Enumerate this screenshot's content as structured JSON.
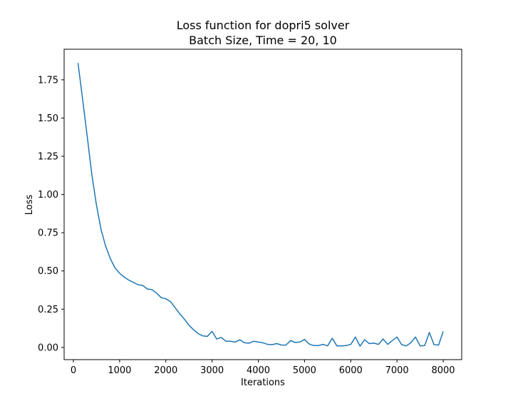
{
  "chart_data": {
    "type": "line",
    "title_line1": "Loss function for dopri5 solver",
    "title_line2": "Batch Size, Time = 20, 10",
    "xlabel": "Iterations",
    "ylabel": "Loss",
    "xlim": [
      -200,
      8400
    ],
    "ylim": [
      -0.08,
      1.95
    ],
    "xticks": [
      0,
      1000,
      2000,
      3000,
      4000,
      5000,
      6000,
      7000,
      8000
    ],
    "xtick_labels": [
      "0",
      "1000",
      "2000",
      "3000",
      "4000",
      "5000",
      "6000",
      "7000",
      "8000"
    ],
    "yticks": [
      0.0,
      0.25,
      0.5,
      0.75,
      1.0,
      1.25,
      1.5,
      1.75
    ],
    "ytick_labels": [
      "0.00",
      "0.25",
      "0.50",
      "0.75",
      "1.00",
      "1.25",
      "1.50",
      "1.75"
    ],
    "grid": false,
    "series": [
      {
        "name": "loss",
        "color": "#1f77b4",
        "x": [
          100,
          200,
          300,
          400,
          500,
          600,
          700,
          800,
          900,
          1000,
          1100,
          1200,
          1300,
          1400,
          1500,
          1600,
          1700,
          1800,
          1900,
          2000,
          2100,
          2200,
          2300,
          2400,
          2500,
          2600,
          2700,
          2800,
          2900,
          3000,
          3100,
          3200,
          3300,
          3400,
          3500,
          3600,
          3700,
          3800,
          3900,
          4000,
          4100,
          4200,
          4300,
          4400,
          4500,
          4600,
          4700,
          4800,
          4900,
          5000,
          5100,
          5200,
          5300,
          5400,
          5500,
          5600,
          5700,
          5800,
          5900,
          6000,
          6100,
          6200,
          6300,
          6400,
          6500,
          6600,
          6700,
          6800,
          6900,
          7000,
          7100,
          7200,
          7300,
          7400,
          7500,
          7600,
          7700,
          7800,
          7900,
          8000
        ],
        "y": [
          1.86,
          1.62,
          1.38,
          1.13,
          0.93,
          0.77,
          0.66,
          0.58,
          0.52,
          0.485,
          0.46,
          0.44,
          0.425,
          0.41,
          0.405,
          0.382,
          0.378,
          0.355,
          0.325,
          0.318,
          0.3,
          0.26,
          0.22,
          0.185,
          0.145,
          0.115,
          0.09,
          0.075,
          0.072,
          0.105,
          0.055,
          0.065,
          0.04,
          0.04,
          0.035,
          0.05,
          0.03,
          0.028,
          0.04,
          0.035,
          0.03,
          0.02,
          0.018,
          0.025,
          0.015,
          0.015,
          0.045,
          0.032,
          0.035,
          0.052,
          0.022,
          0.012,
          0.012,
          0.02,
          0.01,
          0.06,
          0.01,
          0.01,
          0.012,
          0.02,
          0.068,
          0.008,
          0.05,
          0.025,
          0.028,
          0.02,
          0.055,
          0.02,
          0.045,
          0.068,
          0.018,
          0.01,
          0.03,
          0.068,
          0.01,
          0.012,
          0.098,
          0.018,
          0.015,
          0.105
        ]
      }
    ]
  }
}
